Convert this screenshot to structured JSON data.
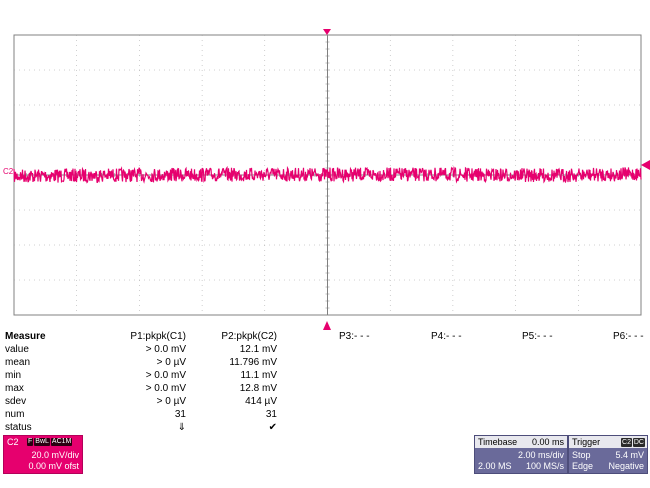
{
  "scope": {
    "channel_marker": "C2",
    "colors": {
      "trace": "#e6006e",
      "grid": "#a0a0a0",
      "frame": "#808080"
    }
  },
  "measure": {
    "header_label": "Measure",
    "params": [
      "P1:pkpk(C1)",
      "P2:pkpk(C2)",
      "P3:- - -",
      "P4:- - -",
      "P5:- - -",
      "P6:- - -"
    ],
    "rows": [
      {
        "label": "value",
        "p1": "> 0.0 mV",
        "p2": "12.1 mV"
      },
      {
        "label": "mean",
        "p1": "> 0 µV",
        "p2": "11.796 mV"
      },
      {
        "label": "min",
        "p1": "> 0.0 mV",
        "p2": "11.1 mV"
      },
      {
        "label": "max",
        "p1": "> 0.0 mV",
        "p2": "12.8 mV"
      },
      {
        "label": "sdev",
        "p1": "> 0 µV",
        "p2": "414 µV"
      },
      {
        "label": "num",
        "p1": "31",
        "p2": "31"
      },
      {
        "label": "status",
        "p1": "⇓",
        "p2": "✔"
      }
    ]
  },
  "channel_box": {
    "label": "C2",
    "flags": [
      "F",
      "BwL",
      "AC1M"
    ],
    "scale": "20.0 mV/div",
    "offset": "0.00 mV ofst"
  },
  "timebase": {
    "title": "Timebase",
    "delay": "0.00 ms",
    "scale": "2.00 ms/div",
    "samples": "2.00 MS",
    "rate": "100 MS/s"
  },
  "trigger": {
    "title": "Trigger",
    "tag1": "C2",
    "tag2": "DC",
    "mode": "Stop",
    "level": "5.4 mV",
    "type": "Edge",
    "slope": "Negative"
  }
}
